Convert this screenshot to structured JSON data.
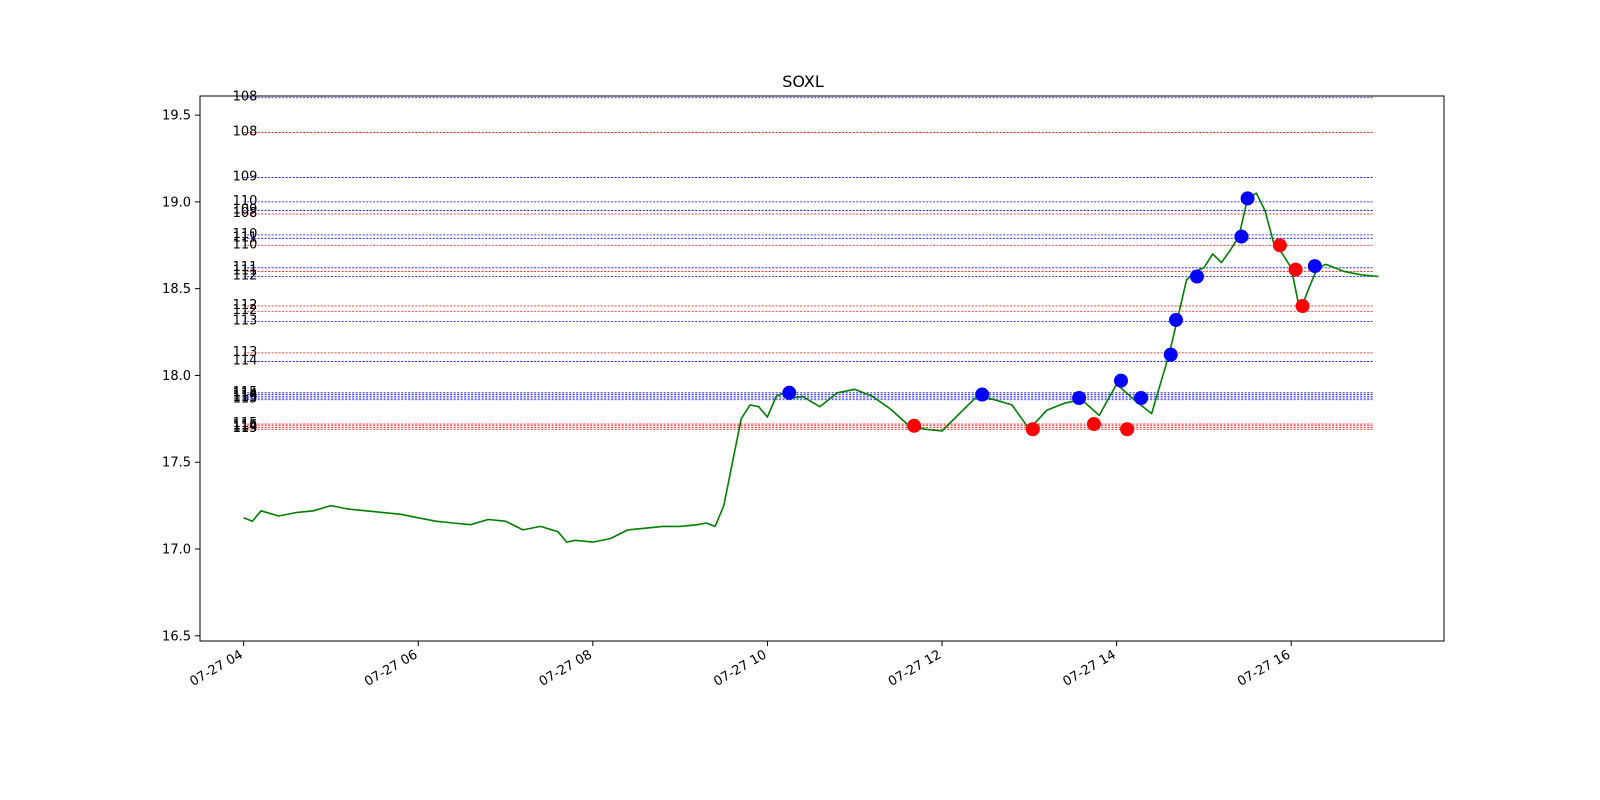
{
  "chart_data": {
    "type": "line",
    "title": "SOXL",
    "xlabel": "",
    "ylabel": "",
    "grid": false,
    "legend": "none",
    "x_range": [
      "2023-07-27 03:30",
      "2023-07-27 17:45"
    ],
    "ylim": [
      16.47,
      19.61
    ],
    "x_ticks": [
      {
        "label": "07-27 04",
        "hour": 4
      },
      {
        "label": "07-27 06",
        "hour": 6
      },
      {
        "label": "07-27 08",
        "hour": 8
      },
      {
        "label": "07-27 10",
        "hour": 10
      },
      {
        "label": "07-27 12",
        "hour": 12
      },
      {
        "label": "07-27 14",
        "hour": 14
      },
      {
        "label": "07-27 16",
        "hour": 16
      }
    ],
    "y_ticks": [
      "16.5",
      "17.0",
      "17.5",
      "18.0",
      "18.5",
      "19.0",
      "19.5"
    ],
    "series": [
      {
        "color": "#007f00",
        "x": [
          4.0,
          4.1,
          4.2,
          4.4,
          4.6,
          4.8,
          5.0,
          5.2,
          5.4,
          5.6,
          5.8,
          6.0,
          6.2,
          6.4,
          6.6,
          6.8,
          7.0,
          7.2,
          7.4,
          7.6,
          7.7,
          7.8,
          8.0,
          8.2,
          8.4,
          8.6,
          8.8,
          9.0,
          9.2,
          9.3,
          9.4,
          9.5,
          9.6,
          9.7,
          9.8,
          9.9,
          10.0,
          10.1,
          10.2,
          10.3,
          10.4,
          10.6,
          10.8,
          11.0,
          11.2,
          11.4,
          11.6,
          11.8,
          12.0,
          12.2,
          12.4,
          12.6,
          12.8,
          13.0,
          13.2,
          13.4,
          13.6,
          13.8,
          14.0,
          14.2,
          14.4,
          14.6,
          14.7,
          14.8,
          14.9,
          15.0,
          15.1,
          15.2,
          15.3,
          15.4,
          15.5,
          15.6,
          15.7,
          15.8,
          15.9,
          16.0,
          16.1,
          16.2,
          16.3,
          16.4,
          16.6,
          16.8,
          17.0
        ],
        "y": [
          17.18,
          17.16,
          17.22,
          17.19,
          17.21,
          17.22,
          17.25,
          17.23,
          17.22,
          17.21,
          17.2,
          17.18,
          17.16,
          17.15,
          17.14,
          17.17,
          17.16,
          17.11,
          17.13,
          17.1,
          17.04,
          17.05,
          17.04,
          17.06,
          17.11,
          17.12,
          17.13,
          17.13,
          17.14,
          17.15,
          17.13,
          17.25,
          17.5,
          17.75,
          17.83,
          17.82,
          17.76,
          17.88,
          17.9,
          17.87,
          17.88,
          17.82,
          17.9,
          17.92,
          17.88,
          17.81,
          17.72,
          17.69,
          17.68,
          17.78,
          17.88,
          17.86,
          17.83,
          17.69,
          17.8,
          17.84,
          17.86,
          17.77,
          17.95,
          17.86,
          17.78,
          18.12,
          18.33,
          18.55,
          18.6,
          18.62,
          18.7,
          18.65,
          18.72,
          18.8,
          19.02,
          19.05,
          18.95,
          18.76,
          18.7,
          18.62,
          18.37,
          18.5,
          18.62,
          18.64,
          18.6,
          18.58,
          18.57
        ]
      }
    ],
    "markers": [
      {
        "color": "#0000ff",
        "x": 10.25,
        "y": 17.9
      },
      {
        "color": "#ff0000",
        "x": 11.68,
        "y": 17.71
      },
      {
        "color": "#0000ff",
        "x": 12.46,
        "y": 17.89
      },
      {
        "color": "#ff0000",
        "x": 13.04,
        "y": 17.69
      },
      {
        "color": "#0000ff",
        "x": 13.57,
        "y": 17.87
      },
      {
        "color": "#ff0000",
        "x": 13.74,
        "y": 17.72
      },
      {
        "color": "#0000ff",
        "x": 14.05,
        "y": 17.97
      },
      {
        "color": "#ff0000",
        "x": 14.12,
        "y": 17.69
      },
      {
        "color": "#0000ff",
        "x": 14.28,
        "y": 17.87
      },
      {
        "color": "#0000ff",
        "x": 14.62,
        "y": 18.12
      },
      {
        "color": "#0000ff",
        "x": 14.68,
        "y": 18.32
      },
      {
        "color": "#0000ff",
        "x": 14.92,
        "y": 18.57
      },
      {
        "color": "#0000ff",
        "x": 15.43,
        "y": 18.8
      },
      {
        "color": "#0000ff",
        "x": 15.5,
        "y": 19.02
      },
      {
        "color": "#ff0000",
        "x": 15.87,
        "y": 18.75
      },
      {
        "color": "#ff0000",
        "x": 16.05,
        "y": 18.61
      },
      {
        "color": "#ff0000",
        "x": 16.13,
        "y": 18.4
      },
      {
        "color": "#0000ff",
        "x": 16.27,
        "y": 18.63
      }
    ],
    "levels": [
      {
        "label": "108",
        "y": 19.6,
        "color": "#0000ff"
      },
      {
        "label": "108",
        "y": 19.4,
        "color": "#ff0000"
      },
      {
        "label": "109",
        "y": 19.14,
        "color": "#0000ff"
      },
      {
        "label": "110",
        "y": 19.0,
        "color": "#0000ff"
      },
      {
        "label": "109",
        "y": 18.95,
        "color": "#0000ff"
      },
      {
        "label": "108",
        "y": 18.93,
        "color": "#ff0000"
      },
      {
        "label": "110",
        "y": 18.81,
        "color": "#0000ff"
      },
      {
        "label": "111",
        "y": 18.79,
        "color": "#0000ff"
      },
      {
        "label": "110",
        "y": 18.75,
        "color": "#ff0000"
      },
      {
        "label": "111",
        "y": 18.62,
        "color": "#0000ff"
      },
      {
        "label": "111",
        "y": 18.6,
        "color": "#ff0000"
      },
      {
        "label": "112",
        "y": 18.57,
        "color": "#0000ff"
      },
      {
        "label": "112",
        "y": 18.4,
        "color": "#ff0000"
      },
      {
        "label": "112",
        "y": 18.37,
        "color": "#ff0000"
      },
      {
        "label": "113",
        "y": 18.31,
        "color": "#0000ff"
      },
      {
        "label": "113",
        "y": 18.13,
        "color": "#ff0000"
      },
      {
        "label": "114",
        "y": 18.08,
        "color": "#0000ff"
      },
      {
        "label": "115",
        "y": 17.9,
        "color": "#0000ff"
      },
      {
        "label": "114",
        "y": 17.89,
        "color": "#0000ff"
      },
      {
        "label": "116",
        "y": 17.88,
        "color": "#0000ff"
      },
      {
        "label": "113",
        "y": 17.87,
        "color": "#0000ff"
      },
      {
        "label": "115",
        "y": 17.86,
        "color": "#0000ff"
      },
      {
        "label": "115",
        "y": 17.72,
        "color": "#ff0000"
      },
      {
        "label": "116",
        "y": 17.71,
        "color": "#ff0000"
      },
      {
        "label": "114",
        "y": 17.7,
        "color": "#ff0000"
      },
      {
        "label": "113",
        "y": 17.69,
        "color": "#ff0000"
      }
    ]
  }
}
